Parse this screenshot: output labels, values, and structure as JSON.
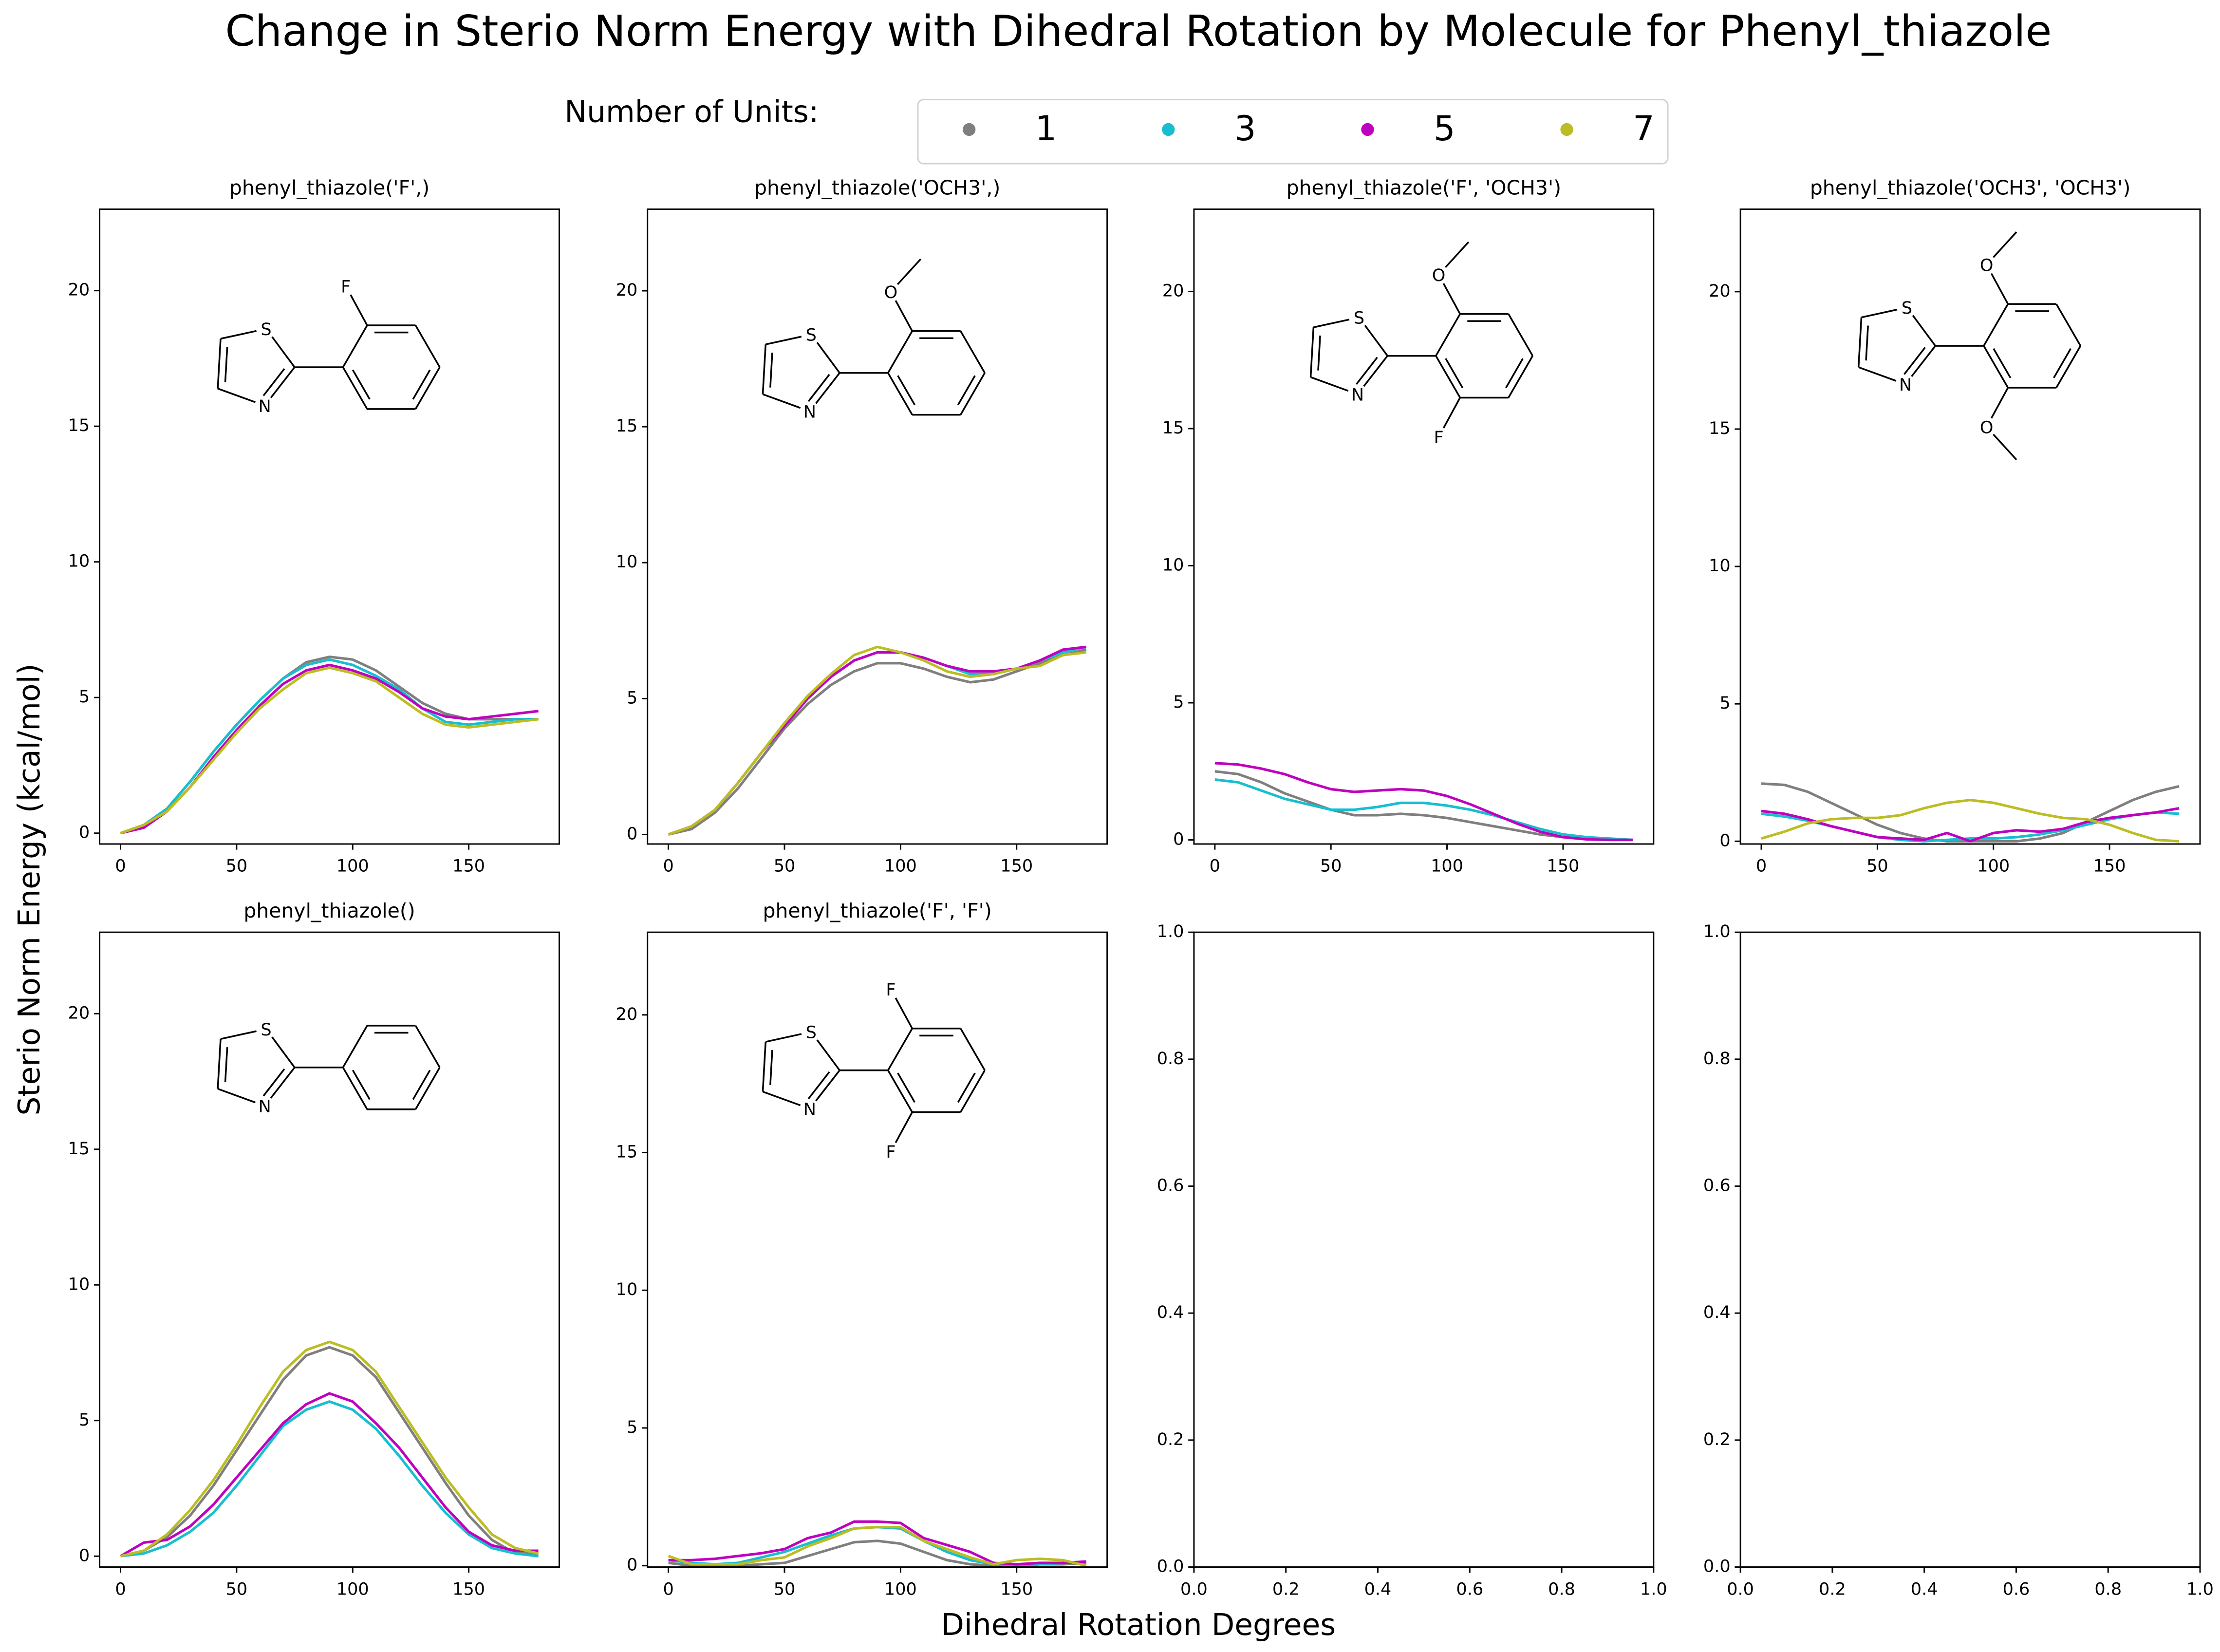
{
  "title": "Change in Sterio Norm Energy with Dihedral Rotation by Molecule for Phenyl_thiazole",
  "legend_title": "Number of Units:",
  "x_label": "Dihedral Rotation Degrees",
  "y_label": "Sterio Norm Energy (kcal/mol)",
  "chart_data": [
    {
      "type": "line",
      "title": "phenyl_thiazole('F',)",
      "atoms": [
        {
          "label": "S",
          "color": "#b2b200"
        },
        {
          "label": "N",
          "color": "#0000ff"
        },
        {
          "label": "F",
          "color": "#33cccc"
        }
      ],
      "x": [
        0,
        10,
        20,
        30,
        40,
        50,
        60,
        70,
        80,
        90,
        100,
        110,
        120,
        130,
        140,
        150,
        160,
        170,
        180
      ],
      "xlim": [
        -9,
        189
      ],
      "xticks": [
        0,
        50,
        100,
        150
      ],
      "ylim": [
        -0.4,
        23
      ],
      "yticks": [
        0,
        5,
        10,
        15,
        20
      ],
      "series": [
        {
          "name": "1",
          "color": "#7f7f7f",
          "values": [
            0,
            0.3,
            0.9,
            1.9,
            3.0,
            4.0,
            4.9,
            5.7,
            6.3,
            6.5,
            6.4,
            6.0,
            5.4,
            4.8,
            4.4,
            4.2,
            4.2,
            4.2,
            4.2
          ]
        },
        {
          "name": "3",
          "color": "#17becf",
          "values": [
            0,
            0.3,
            0.9,
            1.9,
            3.0,
            4.0,
            4.9,
            5.7,
            6.2,
            6.4,
            6.2,
            5.8,
            5.3,
            4.6,
            4.1,
            4.0,
            4.1,
            4.2,
            4.2
          ]
        },
        {
          "name": "5",
          "color": "#bf00bf",
          "values": [
            0,
            0.2,
            0.8,
            1.7,
            2.8,
            3.8,
            4.7,
            5.5,
            6.0,
            6.2,
            6.0,
            5.7,
            5.2,
            4.6,
            4.3,
            4.2,
            4.3,
            4.4,
            4.5
          ]
        },
        {
          "name": "7",
          "color": "#bcbd22",
          "values": [
            0,
            0.3,
            0.8,
            1.7,
            2.7,
            3.7,
            4.6,
            5.3,
            5.9,
            6.1,
            5.9,
            5.6,
            5.0,
            4.4,
            4.0,
            3.9,
            4.0,
            4.1,
            4.2
          ]
        }
      ]
    },
    {
      "type": "line",
      "title": "phenyl_thiazole('OCH3',)",
      "atoms": [
        {
          "label": "S",
          "color": "#b2b200"
        },
        {
          "label": "N",
          "color": "#0000ff"
        },
        {
          "label": "O",
          "color": "#ff0000"
        }
      ],
      "x": [
        0,
        10,
        20,
        30,
        40,
        50,
        60,
        70,
        80,
        90,
        100,
        110,
        120,
        130,
        140,
        150,
        160,
        170,
        180
      ],
      "xlim": [
        -9,
        189
      ],
      "xticks": [
        0,
        50,
        100,
        150
      ],
      "ylim": [
        -0.35,
        23
      ],
      "yticks": [
        0,
        5,
        10,
        15,
        20
      ],
      "series": [
        {
          "name": "1",
          "color": "#7f7f7f",
          "values": [
            0,
            0.2,
            0.8,
            1.7,
            2.8,
            3.9,
            4.8,
            5.5,
            6.0,
            6.3,
            6.3,
            6.1,
            5.8,
            5.6,
            5.7,
            6.0,
            6.3,
            6.6,
            6.8
          ]
        },
        {
          "name": "3",
          "color": "#17becf",
          "values": [
            0,
            0.3,
            0.9,
            1.9,
            3.0,
            4.1,
            5.0,
            5.8,
            6.4,
            6.7,
            6.7,
            6.5,
            6.2,
            5.9,
            5.9,
            6.1,
            6.4,
            6.7,
            6.9
          ]
        },
        {
          "name": "5",
          "color": "#bf00bf",
          "values": [
            0,
            0.3,
            0.9,
            1.9,
            3.0,
            4.0,
            5.0,
            5.8,
            6.4,
            6.7,
            6.7,
            6.5,
            6.2,
            6.0,
            6.0,
            6.1,
            6.4,
            6.8,
            6.9
          ]
        },
        {
          "name": "7",
          "color": "#bcbd22",
          "values": [
            0,
            0.3,
            0.9,
            1.9,
            3.0,
            4.1,
            5.1,
            5.9,
            6.6,
            6.9,
            6.7,
            6.4,
            6.0,
            5.8,
            5.9,
            6.1,
            6.2,
            6.6,
            6.7
          ]
        }
      ]
    },
    {
      "type": "line",
      "title": "phenyl_thiazole('F', 'OCH3')",
      "atoms": [
        {
          "label": "S",
          "color": "#b2b200"
        },
        {
          "label": "N",
          "color": "#0000ff"
        },
        {
          "label": "O",
          "color": "#ff0000"
        },
        {
          "label": "F",
          "color": "#33cccc"
        }
      ],
      "x": [
        0,
        10,
        20,
        30,
        40,
        50,
        60,
        70,
        80,
        90,
        100,
        110,
        120,
        130,
        140,
        150,
        160,
        170,
        180
      ],
      "xlim": [
        -9,
        189
      ],
      "xticks": [
        0,
        50,
        100,
        150
      ],
      "ylim": [
        -0.15,
        23
      ],
      "yticks": [
        0,
        5,
        10,
        15,
        20
      ],
      "series": [
        {
          "name": "1",
          "color": "#7f7f7f",
          "values": [
            2.5,
            2.4,
            2.1,
            1.7,
            1.4,
            1.1,
            0.9,
            0.9,
            0.95,
            0.9,
            0.8,
            0.65,
            0.5,
            0.35,
            0.2,
            0.1,
            0.05,
            0,
            0
          ]
        },
        {
          "name": "3",
          "color": "#17becf",
          "values": [
            2.2,
            2.1,
            1.8,
            1.5,
            1.3,
            1.1,
            1.1,
            1.2,
            1.35,
            1.35,
            1.25,
            1.1,
            0.9,
            0.65,
            0.4,
            0.2,
            0.1,
            0.05,
            0
          ]
        },
        {
          "name": "5",
          "color": "#bf00bf",
          "values": [
            2.8,
            2.75,
            2.6,
            2.4,
            2.1,
            1.85,
            1.75,
            1.8,
            1.85,
            1.8,
            1.6,
            1.3,
            0.95,
            0.6,
            0.3,
            0.1,
            0.02,
            0,
            0
          ]
        }
      ]
    },
    {
      "type": "line",
      "title": "phenyl_thiazole('OCH3', 'OCH3')",
      "atoms": [
        {
          "label": "S",
          "color": "#b2b200"
        },
        {
          "label": "N",
          "color": "#0000ff"
        },
        {
          "label": "O",
          "color": "#ff0000"
        },
        {
          "label": "O",
          "color": "#ff0000"
        }
      ],
      "x": [
        0,
        10,
        20,
        30,
        40,
        50,
        60,
        70,
        80,
        90,
        100,
        110,
        120,
        130,
        140,
        150,
        160,
        170,
        180
      ],
      "xlim": [
        -9,
        189
      ],
      "xticks": [
        0,
        50,
        100,
        150
      ],
      "ylim": [
        -0.1,
        23
      ],
      "yticks": [
        0,
        5,
        10,
        15,
        20
      ],
      "series": [
        {
          "name": "1",
          "color": "#7f7f7f",
          "values": [
            2.1,
            2.05,
            1.8,
            1.4,
            1.0,
            0.6,
            0.3,
            0.1,
            0.0,
            0.0,
            0.0,
            0.0,
            0.1,
            0.3,
            0.7,
            1.1,
            1.5,
            1.8,
            2.0
          ]
        },
        {
          "name": "3",
          "color": "#17becf",
          "values": [
            1.0,
            0.9,
            0.75,
            0.55,
            0.35,
            0.15,
            0.05,
            0.0,
            0.05,
            0.1,
            0.1,
            0.15,
            0.25,
            0.4,
            0.6,
            0.8,
            0.95,
            1.05,
            1.0
          ]
        },
        {
          "name": "5",
          "color": "#bf00bf",
          "values": [
            1.1,
            1.0,
            0.8,
            0.55,
            0.35,
            0.15,
            0.1,
            0.05,
            0.3,
            0.0,
            0.3,
            0.4,
            0.35,
            0.45,
            0.7,
            0.85,
            0.95,
            1.05,
            1.2
          ]
        },
        {
          "name": "7",
          "color": "#bcbd22",
          "values": [
            0.1,
            0.35,
            0.65,
            0.8,
            0.85,
            0.85,
            0.95,
            1.2,
            1.4,
            1.5,
            1.4,
            1.2,
            1.0,
            0.85,
            0.8,
            0.6,
            0.3,
            0.05,
            0
          ]
        }
      ]
    },
    {
      "type": "line",
      "title": "phenyl_thiazole()",
      "atoms": [
        {
          "label": "S",
          "color": "#b2b200"
        },
        {
          "label": "N",
          "color": "#0000ff"
        }
      ],
      "x": [
        0,
        10,
        20,
        30,
        40,
        50,
        60,
        70,
        80,
        90,
        100,
        110,
        120,
        130,
        140,
        150,
        160,
        170,
        180
      ],
      "xlim": [
        -9,
        189
      ],
      "xticks": [
        0,
        50,
        100,
        150
      ],
      "ylim": [
        -0.4,
        23
      ],
      "yticks": [
        0,
        5,
        10,
        15,
        20
      ],
      "series": [
        {
          "name": "1",
          "color": "#7f7f7f",
          "values": [
            0,
            0.2,
            0.7,
            1.5,
            2.6,
            3.9,
            5.2,
            6.5,
            7.4,
            7.7,
            7.4,
            6.6,
            5.3,
            4.0,
            2.7,
            1.5,
            0.6,
            0.1,
            0.1
          ]
        },
        {
          "name": "3",
          "color": "#17becf",
          "values": [
            0,
            0.1,
            0.4,
            0.9,
            1.6,
            2.6,
            3.7,
            4.8,
            5.4,
            5.7,
            5.4,
            4.7,
            3.7,
            2.6,
            1.6,
            0.8,
            0.3,
            0.1,
            0.0
          ]
        },
        {
          "name": "5",
          "color": "#bf00bf",
          "values": [
            0,
            0.5,
            0.6,
            1.1,
            1.9,
            2.9,
            3.9,
            4.9,
            5.6,
            6.0,
            5.7,
            4.9,
            4.0,
            2.9,
            1.8,
            0.9,
            0.4,
            0.2,
            0.2
          ]
        },
        {
          "name": "7",
          "color": "#bcbd22",
          "values": [
            0,
            0.2,
            0.8,
            1.7,
            2.8,
            4.1,
            5.5,
            6.8,
            7.6,
            7.9,
            7.6,
            6.8,
            5.5,
            4.2,
            2.9,
            1.8,
            0.8,
            0.3,
            0.1
          ]
        }
      ]
    },
    {
      "type": "line",
      "title": "phenyl_thiazole('F', 'F')",
      "atoms": [
        {
          "label": "S",
          "color": "#b2b200"
        },
        {
          "label": "N",
          "color": "#0000ff"
        },
        {
          "label": "F",
          "color": "#33cccc"
        },
        {
          "label": "F",
          "color": "#33cccc"
        }
      ],
      "x": [
        0,
        10,
        20,
        30,
        40,
        50,
        60,
        70,
        80,
        90,
        100,
        110,
        120,
        130,
        140,
        150,
        160,
        170,
        180
      ],
      "xlim": [
        -9,
        189
      ],
      "xticks": [
        0,
        50,
        100,
        150
      ],
      "ylim": [
        -0.05,
        23
      ],
      "yticks": [
        0,
        5,
        10,
        15,
        20
      ],
      "series": [
        {
          "name": "1",
          "color": "#7f7f7f",
          "values": [
            0.1,
            0.0,
            0.0,
            0.0,
            0.05,
            0.1,
            0.35,
            0.6,
            0.85,
            0.9,
            0.8,
            0.5,
            0.2,
            0.05,
            0.0,
            0.0,
            0.05,
            0.05,
            0.1
          ]
        },
        {
          "name": "3",
          "color": "#17becf",
          "values": [
            0.2,
            0.1,
            0.05,
            0.1,
            0.3,
            0.5,
            0.8,
            1.1,
            1.35,
            1.4,
            1.35,
            0.9,
            0.5,
            0.2,
            0.05,
            0.0,
            0.05,
            0.1,
            0.15
          ]
        },
        {
          "name": "5",
          "color": "#bf00bf",
          "values": [
            0.2,
            0.2,
            0.25,
            0.35,
            0.45,
            0.6,
            1.0,
            1.2,
            1.6,
            1.6,
            1.55,
            1.0,
            0.75,
            0.5,
            0.1,
            0.05,
            0.1,
            0.1,
            0.15
          ]
        },
        {
          "name": "7",
          "color": "#bcbd22",
          "values": [
            0.35,
            0.05,
            0.05,
            0.05,
            0.2,
            0.3,
            0.7,
            1.0,
            1.35,
            1.4,
            1.4,
            0.9,
            0.6,
            0.3,
            0.05,
            0.2,
            0.25,
            0.2,
            0.0
          ]
        }
      ]
    },
    {
      "type": "line",
      "series": [],
      "xlim": [
        0,
        1
      ],
      "ylim": [
        0,
        1
      ],
      "xticks": [
        {
          "value": 0,
          "label": "0.0"
        },
        {
          "value": 0.2,
          "label": "0.2"
        },
        {
          "value": 0.4,
          "label": "0.4"
        },
        {
          "value": 0.6,
          "label": "0.6"
        },
        {
          "value": 0.8,
          "label": "0.8"
        },
        {
          "value": 1,
          "label": "1.0"
        }
      ],
      "yticks": [
        {
          "value": 0,
          "label": "0.0"
        },
        {
          "value": 0.2,
          "label": "0.2"
        },
        {
          "value": 0.4,
          "label": "0.4"
        },
        {
          "value": 0.6,
          "label": "0.6"
        },
        {
          "value": 0.8,
          "label": "0.8"
        },
        {
          "value": 1,
          "label": "1.0"
        }
      ]
    },
    {
      "type": "line",
      "series": [],
      "xlim": [
        0,
        1
      ],
      "ylim": [
        0,
        1
      ],
      "xticks": [
        {
          "value": 0,
          "label": "0.0"
        },
        {
          "value": 0.2,
          "label": "0.2"
        },
        {
          "value": 0.4,
          "label": "0.4"
        },
        {
          "value": 0.6,
          "label": "0.6"
        },
        {
          "value": 0.8,
          "label": "0.8"
        },
        {
          "value": 1,
          "label": "1.0"
        }
      ],
      "yticks": [
        {
          "value": 0,
          "label": "0.0"
        },
        {
          "value": 0.2,
          "label": "0.2"
        },
        {
          "value": 0.4,
          "label": "0.4"
        },
        {
          "value": 0.6,
          "label": "0.6"
        },
        {
          "value": 0.8,
          "label": "0.8"
        },
        {
          "value": 1,
          "label": "1.0"
        }
      ]
    }
  ]
}
